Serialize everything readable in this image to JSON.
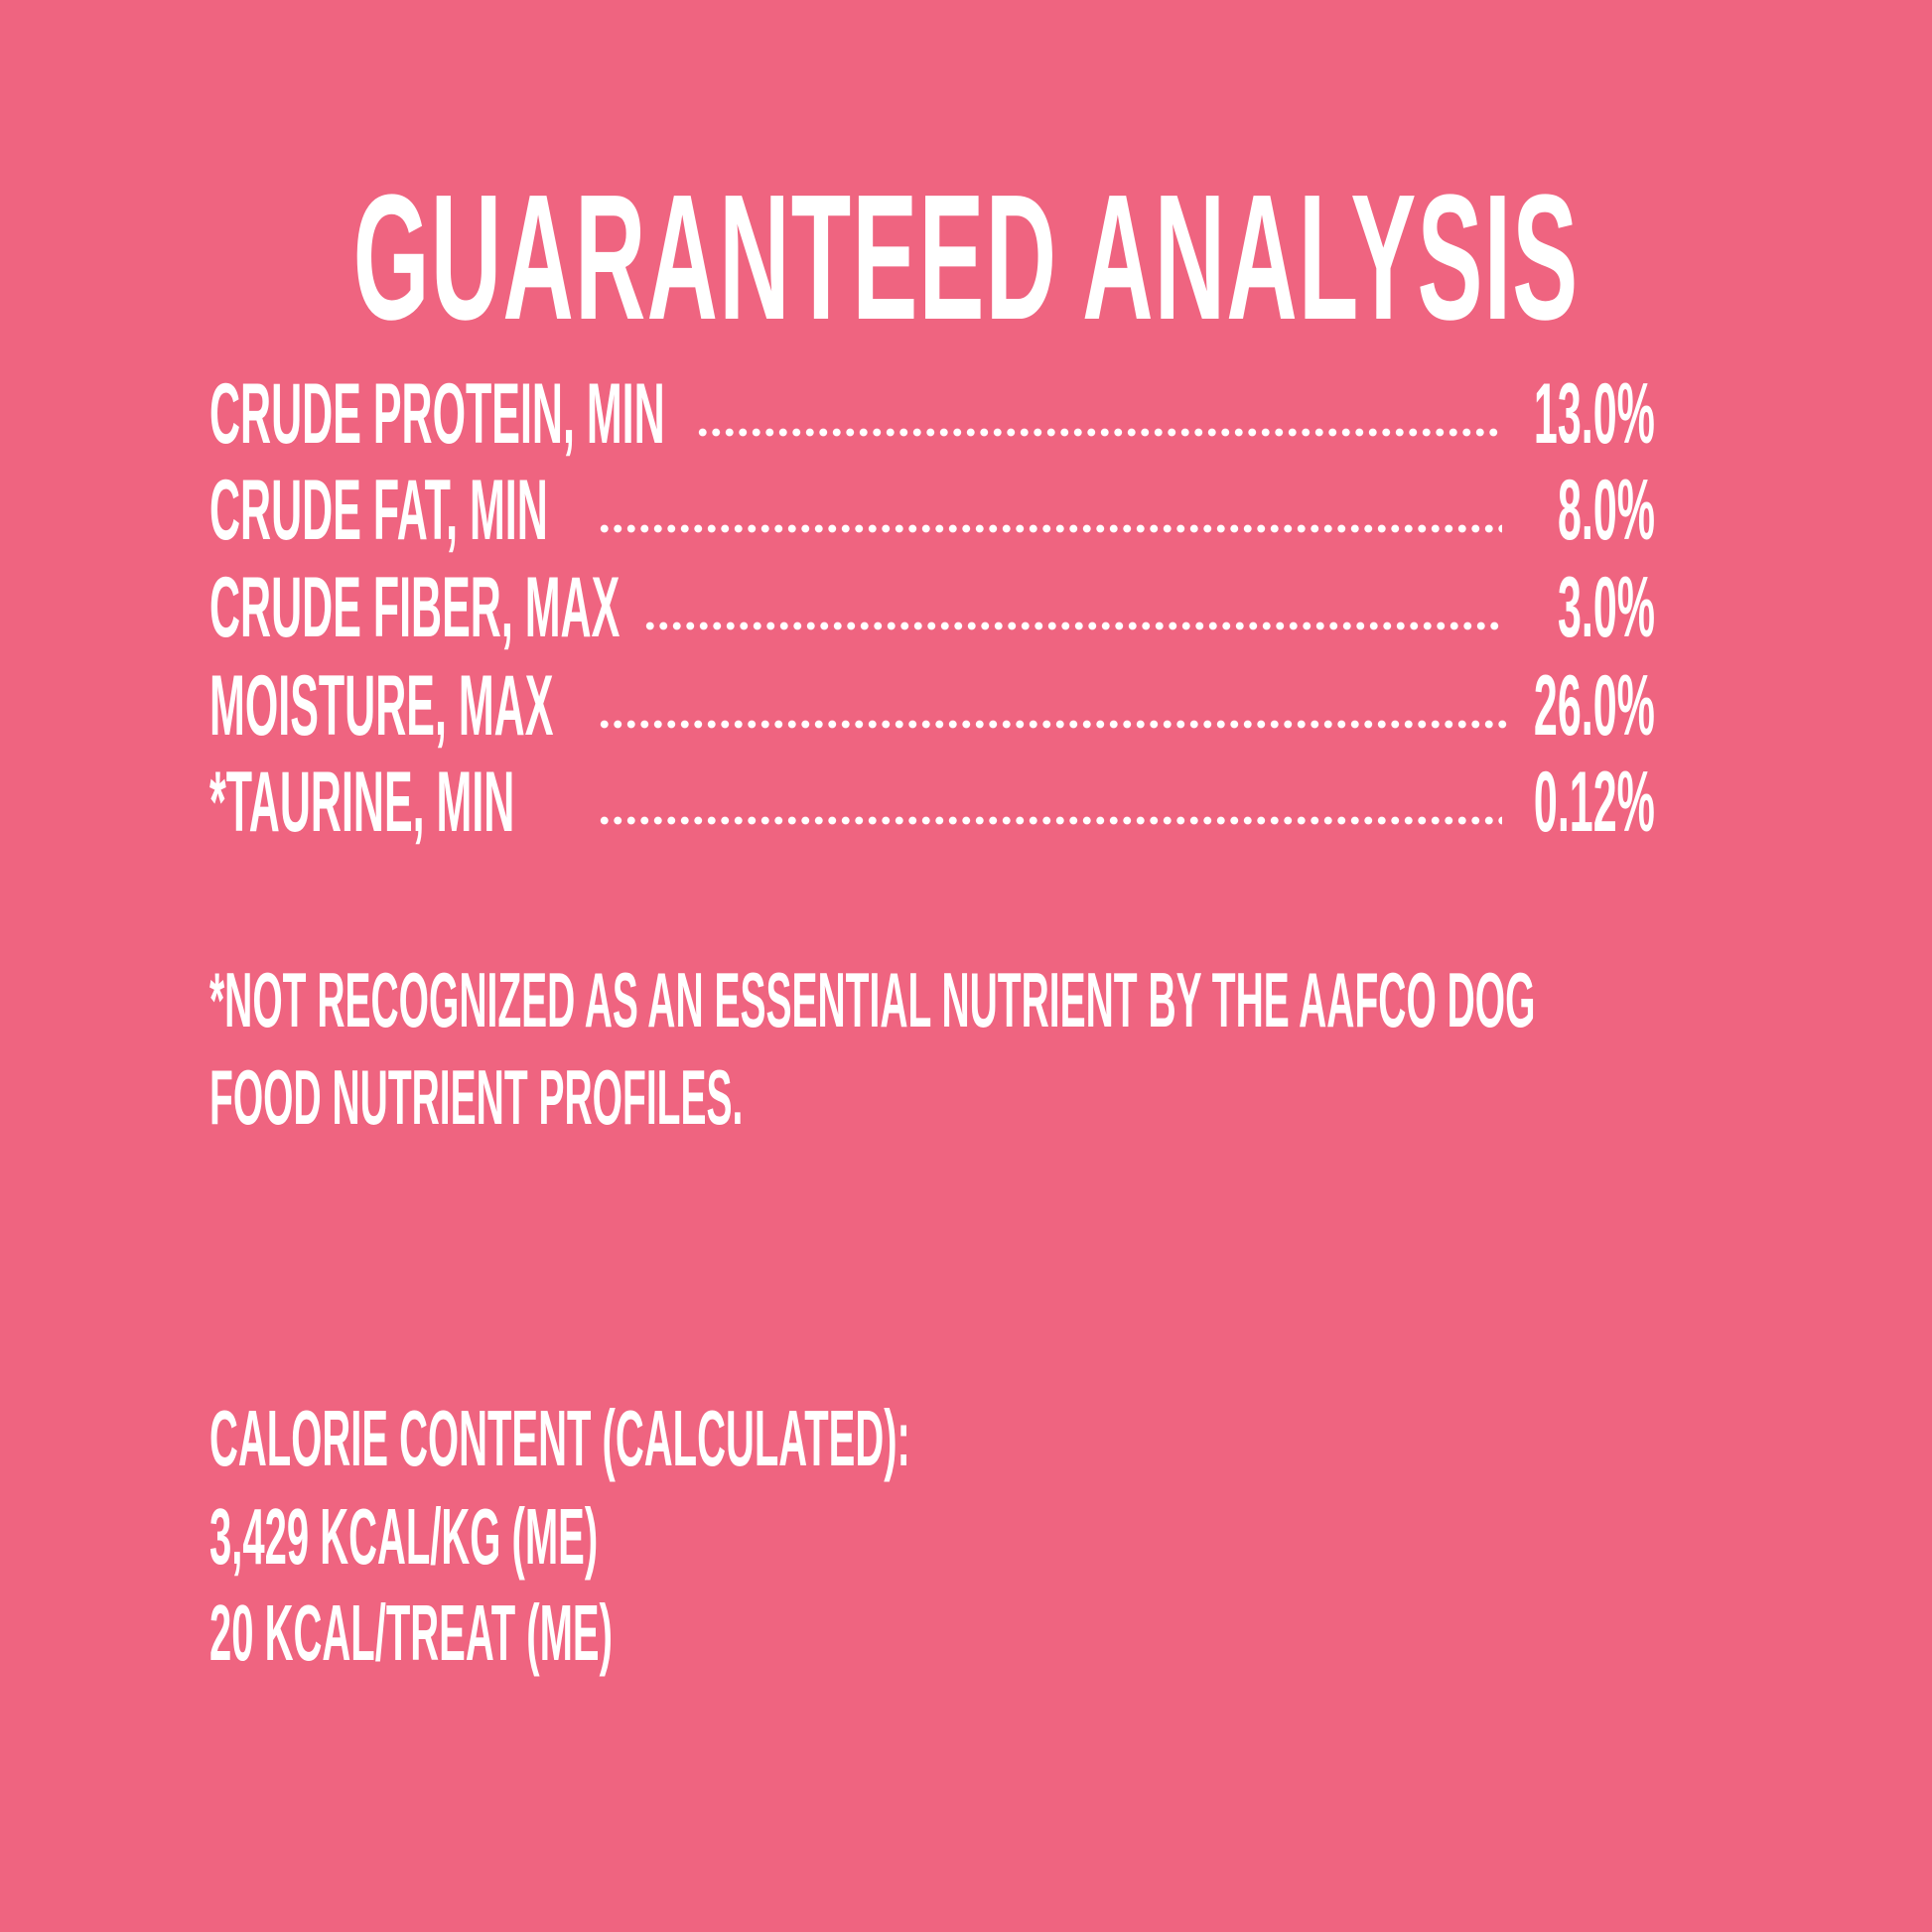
{
  "title": "GUARANTEED ANALYSIS",
  "rows": [
    {
      "label": "CRUDE PROTEIN, MIN",
      "value": "13.0%"
    },
    {
      "label": "CRUDE FAT, MIN",
      "value": "8.0%"
    },
    {
      "label": "CRUDE FIBER, MAX",
      "value": "3.0%"
    },
    {
      "label": "MOISTURE, MAX",
      "value": "26.0%"
    },
    {
      "label": "*TAURINE, MIN",
      "value": "0.12%"
    }
  ],
  "footnote": {
    "line1": "*NOT RECOGNIZED AS AN ESSENTIAL NUTRIENT BY THE AAFCO DOG",
    "line2": "FOOD NUTRIENT PROFILES."
  },
  "calorie": {
    "heading": "CALORIE CONTENT (CALCULATED):",
    "per_kg": "3,429 KCAL/KG (ME)",
    "per_treat": "20 KCAL/TREAT (ME)"
  },
  "colors": {
    "background": "#EF6480",
    "text": "#FFFFFF"
  }
}
